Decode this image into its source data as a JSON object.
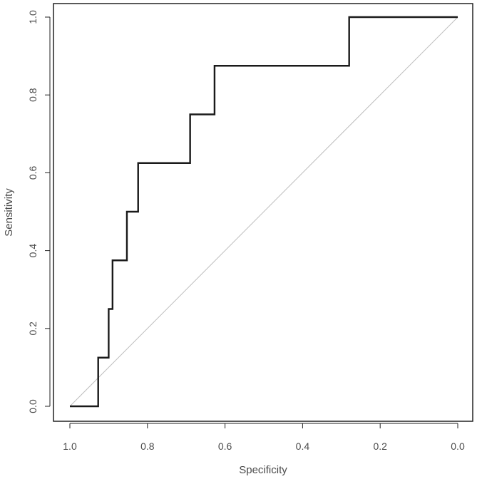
{
  "chart_data": {
    "type": "line",
    "title": "",
    "xlabel": "Specificity",
    "ylabel": "Sensitivity",
    "xlim": [
      1.0,
      0.0
    ],
    "ylim": [
      0.0,
      1.0
    ],
    "x_reversed": true,
    "grid": false,
    "legend": "none",
    "x_ticks": [
      1.0,
      0.8,
      0.6,
      0.4,
      0.2,
      0.0
    ],
    "y_ticks": [
      0.0,
      0.2,
      0.4,
      0.6,
      0.8,
      1.0
    ],
    "x_tick_labels": [
      "1.0",
      "0.8",
      "0.6",
      "0.4",
      "0.2",
      "0.0"
    ],
    "y_tick_labels": [
      "0.0",
      "0.2",
      "0.4",
      "0.6",
      "0.8",
      "1.0"
    ],
    "series": [
      {
        "style": "step",
        "color": "#1a1a1a",
        "x": [
          1.0,
          0.927,
          0.927,
          0.9,
          0.9,
          0.89,
          0.89,
          0.853,
          0.853,
          0.824,
          0.824,
          0.69,
          0.69,
          0.627,
          0.627,
          0.28,
          0.28,
          0.0
        ],
        "y": [
          0.0,
          0.0,
          0.125,
          0.125,
          0.25,
          0.25,
          0.375,
          0.375,
          0.5,
          0.5,
          0.625,
          0.625,
          0.75,
          0.75,
          0.875,
          0.875,
          1.0,
          1.0
        ]
      }
    ],
    "reference_line": {
      "color": "#bdbdbd",
      "x": [
        1.0,
        0.0
      ],
      "y": [
        0.0,
        1.0
      ]
    }
  }
}
